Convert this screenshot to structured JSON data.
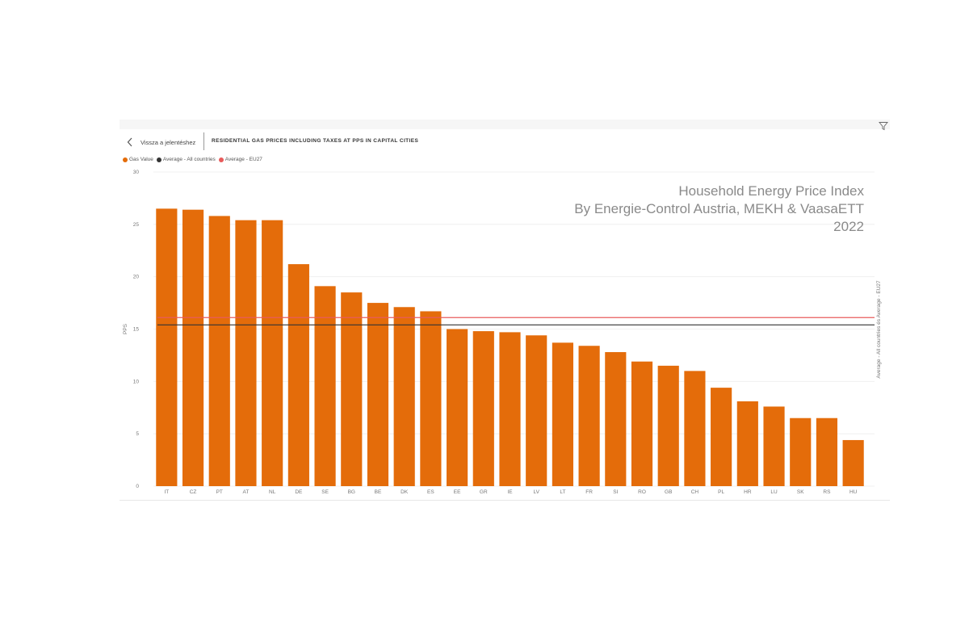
{
  "header": {
    "back_label": "Vissza a jelentéshez",
    "title": "RESIDENTIAL GAS PRICES INCLUDING TAXES AT PPS IN CAPITAL CITIES"
  },
  "icons": {
    "back": "chevron-left-icon",
    "filter": "filter-icon"
  },
  "legend": [
    {
      "label": "Gas Value",
      "color": "#e46c0a"
    },
    {
      "label": "Average - All countries",
      "color": "#333333"
    },
    {
      "label": "Average - EU27",
      "color": "#e85b5b"
    }
  ],
  "overlay": {
    "line1": "Household Energy Price Index",
    "line2": "By Energie-Control Austria, MEKH & VaasaETT",
    "line3": "2022"
  },
  "chart_data": {
    "type": "bar",
    "ylabel": "PPS",
    "secondary_ylabel": "Average - All countries és Average - EU27",
    "ylim": [
      0,
      30
    ],
    "yticks": [
      0,
      5,
      10,
      15,
      20,
      25,
      30
    ],
    "grid": true,
    "legend_position": "top-left",
    "categories": [
      "IT",
      "CZ",
      "PT",
      "AT",
      "NL",
      "DE",
      "SE",
      "BG",
      "BE",
      "DK",
      "ES",
      "EE",
      "GR",
      "IE",
      "LV",
      "LT",
      "FR",
      "SI",
      "RO",
      "GB",
      "CH",
      "PL",
      "HR",
      "LU",
      "SK",
      "RS",
      "HU"
    ],
    "series": [
      {
        "name": "Gas Value",
        "color": "#e46c0a",
        "values": [
          26.5,
          26.4,
          25.8,
          25.4,
          25.4,
          21.2,
          19.1,
          18.5,
          17.5,
          17.1,
          16.7,
          15.0,
          14.8,
          14.7,
          14.4,
          13.7,
          13.4,
          12.8,
          11.9,
          11.5,
          11.0,
          9.4,
          8.1,
          7.6,
          6.5,
          6.5,
          4.4
        ]
      }
    ],
    "reference_lines": [
      {
        "name": "Average - All countries",
        "value": 15.4,
        "color": "#333333"
      },
      {
        "name": "Average - EU27",
        "value": 16.1,
        "color": "#e85b5b"
      }
    ]
  }
}
